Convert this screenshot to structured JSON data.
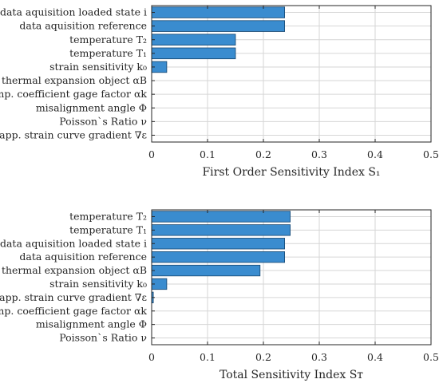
{
  "chart_data": [
    {
      "type": "bar",
      "orientation": "horizontal",
      "categories": [
        "data aquisition loaded state i",
        "data aquisition reference",
        "temperature T₂",
        "temperature T₁",
        "strain sensitivity k₀",
        "thermal expansion object αB",
        "temp. coefficient gage factor αk",
        "misalignment angle Φ",
        "Poisson`s Ratio ν",
        "app. strain curve gradient ∇ε"
      ],
      "values": [
        0.238,
        0.238,
        0.15,
        0.15,
        0.027,
        0,
        0,
        0,
        0,
        0
      ],
      "xlabel": "First Order Sensitivity Index S₁",
      "xlim": [
        0,
        0.5
      ],
      "xticks": [
        "0",
        "0.1",
        "0.2",
        "0.3",
        "0.4",
        "0.5"
      ],
      "grid": true,
      "bar_color": "#3a8ccf"
    },
    {
      "type": "bar",
      "orientation": "horizontal",
      "categories": [
        "temperature T₂",
        "temperature T₁",
        "data aquisition loaded state i",
        "data aquisition reference",
        "thermal expansion object αB",
        "strain sensitivity k₀",
        "app. strain curve gradient ∇ε",
        "temp. coefficient gage factor αk",
        "misalignment angle Φ",
        "Poisson`s Ratio ν"
      ],
      "values": [
        0.248,
        0.248,
        0.238,
        0.238,
        0.194,
        0.027,
        0.003,
        0,
        0,
        0
      ],
      "xlabel": "Total Sensitivity Index Sᴛ",
      "xlim": [
        0,
        0.5
      ],
      "xticks": [
        "0",
        "0.1",
        "0.2",
        "0.3",
        "0.4",
        "0.5"
      ],
      "grid": true,
      "bar_color": "#3a8ccf"
    }
  ]
}
